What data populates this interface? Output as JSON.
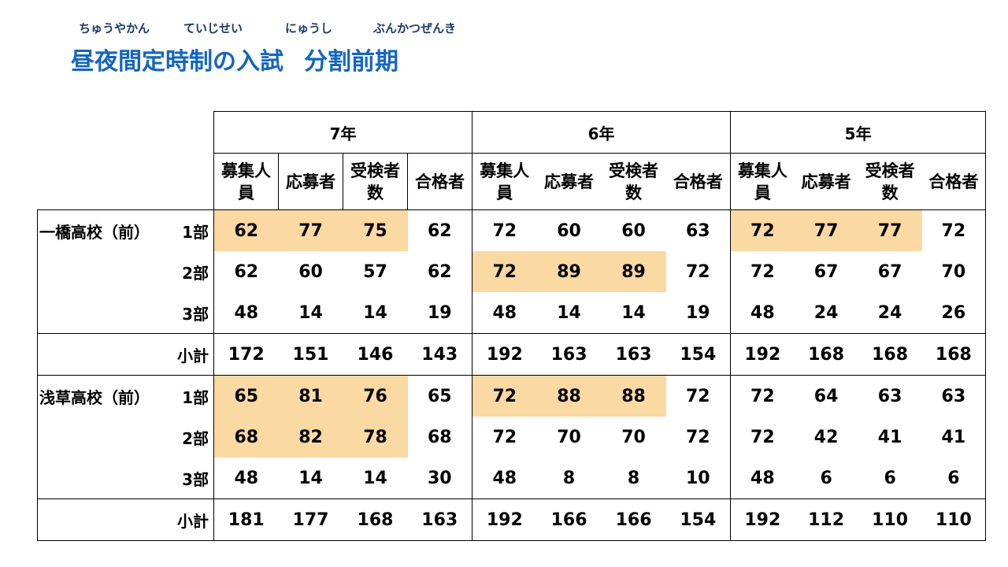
{
  "furigana": [
    "ちゅうやかん",
    "ていじせい",
    "にゅうし",
    "ぶんかつぜんき"
  ],
  "title": {
    "part1": "昼夜間定時制の入試",
    "part2": "分割前期"
  },
  "years": [
    "7年",
    "6年",
    "5年"
  ],
  "columns": [
    "募集人員",
    "応募者",
    "受検者数",
    "合格者"
  ],
  "highlight_color": "#fad9a3",
  "schools": [
    {
      "name": "一橋高校（前）",
      "rows": [
        {
          "label": "1部",
          "values": [
            62,
            77,
            75,
            62,
            72,
            60,
            60,
            63,
            72,
            77,
            77,
            72
          ],
          "highlight": [
            0,
            1,
            2,
            8,
            9,
            10
          ]
        },
        {
          "label": "2部",
          "values": [
            62,
            60,
            57,
            62,
            72,
            89,
            89,
            72,
            72,
            67,
            67,
            70
          ],
          "highlight": [
            4,
            5,
            6
          ]
        },
        {
          "label": "3部",
          "values": [
            48,
            14,
            14,
            19,
            48,
            14,
            14,
            19,
            48,
            24,
            24,
            26
          ],
          "highlight": []
        },
        {
          "label": "小計",
          "values": [
            172,
            151,
            146,
            143,
            192,
            163,
            163,
            154,
            192,
            168,
            168,
            168
          ],
          "highlight": []
        }
      ]
    },
    {
      "name": "浅草高校（前）",
      "rows": [
        {
          "label": "1部",
          "values": [
            65,
            81,
            76,
            65,
            72,
            88,
            88,
            72,
            72,
            64,
            63,
            63
          ],
          "highlight": [
            0,
            1,
            2,
            4,
            5,
            6
          ]
        },
        {
          "label": "2部",
          "values": [
            68,
            82,
            78,
            68,
            72,
            70,
            70,
            72,
            72,
            42,
            41,
            41
          ],
          "highlight": [
            0,
            1,
            2
          ]
        },
        {
          "label": "3部",
          "values": [
            48,
            14,
            14,
            30,
            48,
            8,
            8,
            10,
            48,
            6,
            6,
            6
          ],
          "highlight": []
        },
        {
          "label": "小計",
          "values": [
            181,
            177,
            168,
            163,
            192,
            166,
            166,
            154,
            192,
            112,
            110,
            110
          ],
          "highlight": []
        }
      ]
    }
  ]
}
